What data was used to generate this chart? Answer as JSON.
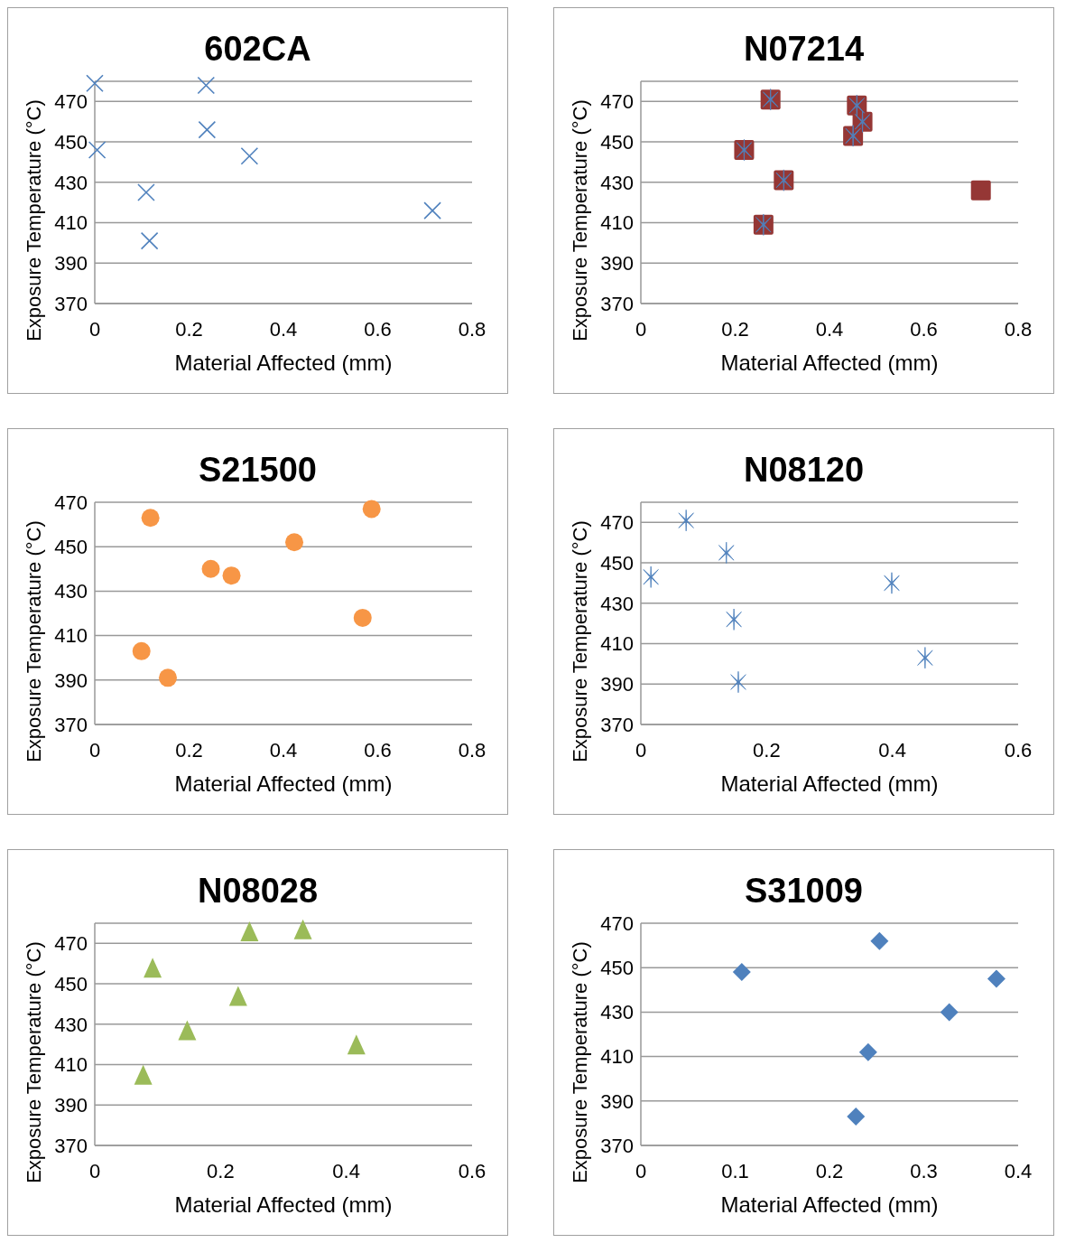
{
  "chart_data": [
    {
      "type": "scatter",
      "title": "602CA",
      "xlabel": "Material Affected (mm)",
      "ylabel": "Exposure Temperature (°C)",
      "xlim": [
        0,
        0.8
      ],
      "xticks": [
        0,
        0.2,
        0.4,
        0.6,
        0.8
      ],
      "ylim": [
        370,
        480
      ],
      "yticks": [
        370,
        390,
        410,
        430,
        450,
        470
      ],
      "grid": "y",
      "legend": false,
      "series": [
        {
          "color": "#4f81bd",
          "marker": "cross",
          "x": [
            0.0,
            0.005,
            0.236,
            0.238,
            0.328,
            0.109,
            0.116,
            0.716
          ],
          "values": [
            479,
            446,
            478,
            456,
            443,
            425,
            401,
            416
          ]
        }
      ]
    },
    {
      "type": "scatter",
      "title": "N07214",
      "xlabel": "Material Affected (mm)",
      "ylabel": "Exposure Temperature (°C)",
      "xlim": [
        0,
        0.8
      ],
      "xticks": [
        0,
        0.2,
        0.4,
        0.6,
        0.8
      ],
      "ylim": [
        370,
        480
      ],
      "yticks": [
        370,
        390,
        410,
        430,
        450,
        470
      ],
      "grid": "y",
      "legend": false,
      "series": [
        {
          "color": "#953735",
          "marker": "square",
          "x": [
            0.275,
            0.458,
            0.47,
            0.45,
            0.219,
            0.303,
            0.26,
            0.721
          ],
          "values": [
            471,
            468,
            460,
            453,
            446,
            431,
            409,
            426
          ]
        },
        {
          "color": "#4f81bd",
          "x": [
            0.275,
            0.458,
            0.47,
            0.45,
            0.219,
            0.303,
            0.26
          ],
          "values": [
            471,
            468,
            460,
            453,
            446,
            431,
            409
          ]
        }
      ]
    },
    {
      "type": "scatter",
      "title": "S21500",
      "xlabel": "Material Affected (mm)",
      "ylabel": "Exposure Temperature (°C)",
      "xlim": [
        0,
        0.8
      ],
      "xticks": [
        0,
        0.2,
        0.4,
        0.6,
        0.8
      ],
      "ylim": [
        370,
        470
      ],
      "yticks": [
        370,
        390,
        410,
        430,
        450,
        470
      ],
      "grid": "y",
      "legend": false,
      "series": [
        {
          "color": "#f79646",
          "marker": "circle",
          "x": [
            0.118,
            0.587,
            0.423,
            0.246,
            0.29,
            0.568,
            0.099,
            0.155
          ],
          "values": [
            463,
            467,
            452,
            440,
            437,
            418,
            403,
            391
          ]
        }
      ]
    },
    {
      "type": "scatter",
      "title": "N08120",
      "xlabel": "Material Affected (mm)",
      "ylabel": "Exposure Temperature (°C)",
      "xlim": [
        0,
        0.6
      ],
      "xticks": [
        0,
        0.2,
        0.4,
        0.6
      ],
      "ylim": [
        370,
        480
      ],
      "yticks": [
        370,
        390,
        410,
        430,
        450,
        470
      ],
      "grid": "y",
      "legend": false,
      "series": [
        {
          "color": "#4f81bd",
          "x": [
            0.072,
            0.136,
            0.016,
            0.399,
            0.148,
            0.155,
            0.452
          ],
          "values": [
            471,
            455,
            443,
            440,
            422,
            391,
            403
          ]
        }
      ]
    },
    {
      "type": "scatter",
      "title": "N08028",
      "xlabel": "Material Affected (mm)",
      "ylabel": "Exposure Temperature (°C)",
      "xlim": [
        0,
        0.6
      ],
      "xticks": [
        0,
        0.2,
        0.4,
        0.6
      ],
      "ylim": [
        370,
        480
      ],
      "yticks": [
        370,
        390,
        410,
        430,
        450,
        470
      ],
      "grid": "y",
      "legend": false,
      "series": [
        {
          "color": "#9bbb59",
          "marker": "triangle",
          "x": [
            0.246,
            0.331,
            0.092,
            0.228,
            0.147,
            0.416,
            0.077
          ],
          "values": [
            476,
            477,
            458,
            444,
            427,
            420,
            405
          ]
        }
      ]
    },
    {
      "type": "scatter",
      "title": "S31009",
      "xlabel": "Material Affected (mm)",
      "ylabel": "Exposure Temperature (°C)",
      "xlim": [
        0,
        0.4
      ],
      "xticks": [
        0,
        0.1,
        0.2,
        0.3,
        0.4
      ],
      "ylim": [
        370,
        470
      ],
      "yticks": [
        370,
        390,
        410,
        430,
        450,
        470
      ],
      "grid": "y",
      "legend": false,
      "series": [
        {
          "color": "#4f81bd",
          "marker": "diamond",
          "x": [
            0.107,
            0.253,
            0.377,
            0.327,
            0.241,
            0.228
          ],
          "values": [
            448,
            462,
            445,
            430,
            412,
            383
          ]
        }
      ]
    }
  ]
}
